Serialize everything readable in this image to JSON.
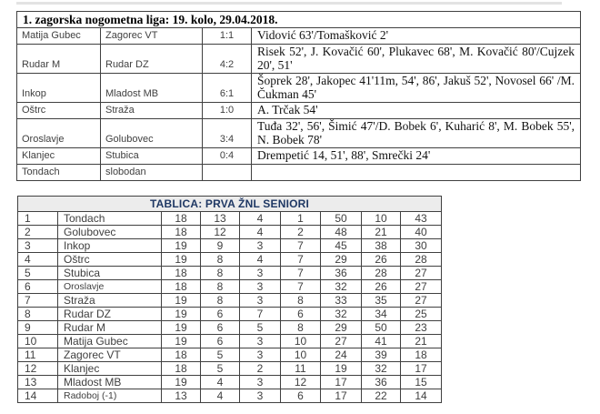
{
  "results_table": {
    "title": "1. zagorska nogometna liga: 19. kolo, 29.04.2018.",
    "rows": [
      {
        "home": "Matija Gubec",
        "away": "Zagorec VT",
        "score": "1:1",
        "scorers": "Vidović 63'/Tomašković 2'"
      },
      {
        "home": "Rudar M",
        "away": "Rudar DZ",
        "score": "4:2",
        "scorers": "Risek 52', J. Kovačić 60', Plukavec 68', M. Kovačić 80'/Cujzek 20', 51'"
      },
      {
        "home": "Inkop",
        "away": "Mladost MB",
        "score": "6:1",
        "scorers": "Šoprek 28', Jakopec 41'11m, 54', 86', Jakuš 52', Novosel 66' /M. Čukman 45'"
      },
      {
        "home": "Oštrc",
        "away": "Straža",
        "score": "1:0",
        "scorers": "A. Trčak 54'"
      },
      {
        "home": "Oroslavje",
        "away": "Golubovec",
        "score": "3:4",
        "scorers": "Tuđa 32', 56', Šimić 47'/D. Bobek 6', Kuharić 8', M. Bobek 55', N. Bobek 78'"
      },
      {
        "home": "Klanjec",
        "away": "Stubica",
        "score": "0:4",
        "scorers": "Drempetić 14, 51', 88', Smrečki 24'"
      },
      {
        "home": "Tondach",
        "away": "slobodan",
        "score": "",
        "scorers": ""
      }
    ]
  },
  "standings_table": {
    "title": "TABLICA: PRVA ŽNL SENIORI",
    "title_color": "#1f3864",
    "header_bg": "#ececec",
    "border_color": "#404040",
    "rows": [
      {
        "rank": "1",
        "team": "Tondach",
        "played": 18,
        "wins": 13,
        "draws": 4,
        "losses": 1,
        "goals_for": 50,
        "goals_against": 10,
        "points": 43
      },
      {
        "rank": "2",
        "team": "Golubovec",
        "played": 18,
        "wins": 12,
        "draws": 4,
        "losses": 2,
        "goals_for": 48,
        "goals_against": 21,
        "points": 40
      },
      {
        "rank": "3",
        "team": "Inkop",
        "played": 19,
        "wins": 9,
        "draws": 3,
        "losses": 7,
        "goals_for": 45,
        "goals_against": 38,
        "points": 30
      },
      {
        "rank": "4",
        "team": "Oštrc",
        "played": 19,
        "wins": 8,
        "draws": 4,
        "losses": 7,
        "goals_for": 29,
        "goals_against": 26,
        "points": 28
      },
      {
        "rank": "5",
        "team": "Stubica",
        "played": 18,
        "wins": 8,
        "draws": 3,
        "losses": 7,
        "goals_for": 36,
        "goals_against": 28,
        "points": 27
      },
      {
        "rank": "6",
        "team": "Oroslavje",
        "team_small": true,
        "played": 18,
        "wins": 8,
        "draws": 3,
        "losses": 7,
        "goals_for": 32,
        "goals_against": 26,
        "points": 27
      },
      {
        "rank": "7",
        "team": "Straža",
        "played": 19,
        "wins": 8,
        "draws": 3,
        "losses": 8,
        "goals_for": 33,
        "goals_against": 35,
        "points": 27
      },
      {
        "rank": "8",
        "team": "Rudar DZ",
        "played": 19,
        "wins": 6,
        "draws": 7,
        "losses": 6,
        "goals_for": 32,
        "goals_against": 34,
        "points": 25
      },
      {
        "rank": "9",
        "team": "Rudar M",
        "played": 19,
        "wins": 6,
        "draws": 5,
        "losses": 8,
        "goals_for": 29,
        "goals_against": 50,
        "points": 23
      },
      {
        "rank": "10",
        "team": "Matija Gubec",
        "played": 19,
        "wins": 6,
        "draws": 3,
        "losses": 10,
        "goals_for": 27,
        "goals_against": 41,
        "points": 21
      },
      {
        "rank": "11",
        "team": "Zagorec VT",
        "played": 18,
        "wins": 5,
        "draws": 3,
        "losses": 10,
        "goals_for": 24,
        "goals_against": 39,
        "points": 18
      },
      {
        "rank": "12",
        "team": "Klanjec",
        "played": 18,
        "wins": 5,
        "draws": 2,
        "losses": 11,
        "goals_for": 19,
        "goals_against": 32,
        "points": 17
      },
      {
        "rank": "13",
        "team": "Mladost MB",
        "played": 19,
        "wins": 4,
        "draws": 3,
        "losses": 12,
        "goals_for": 17,
        "goals_against": 36,
        "points": 15
      },
      {
        "rank": "14",
        "team": "Radoboj (-1)",
        "team_small": true,
        "played": 13,
        "wins": 4,
        "draws": 3,
        "losses": 6,
        "goals_for": 17,
        "goals_against": 22,
        "points": 14
      }
    ]
  }
}
